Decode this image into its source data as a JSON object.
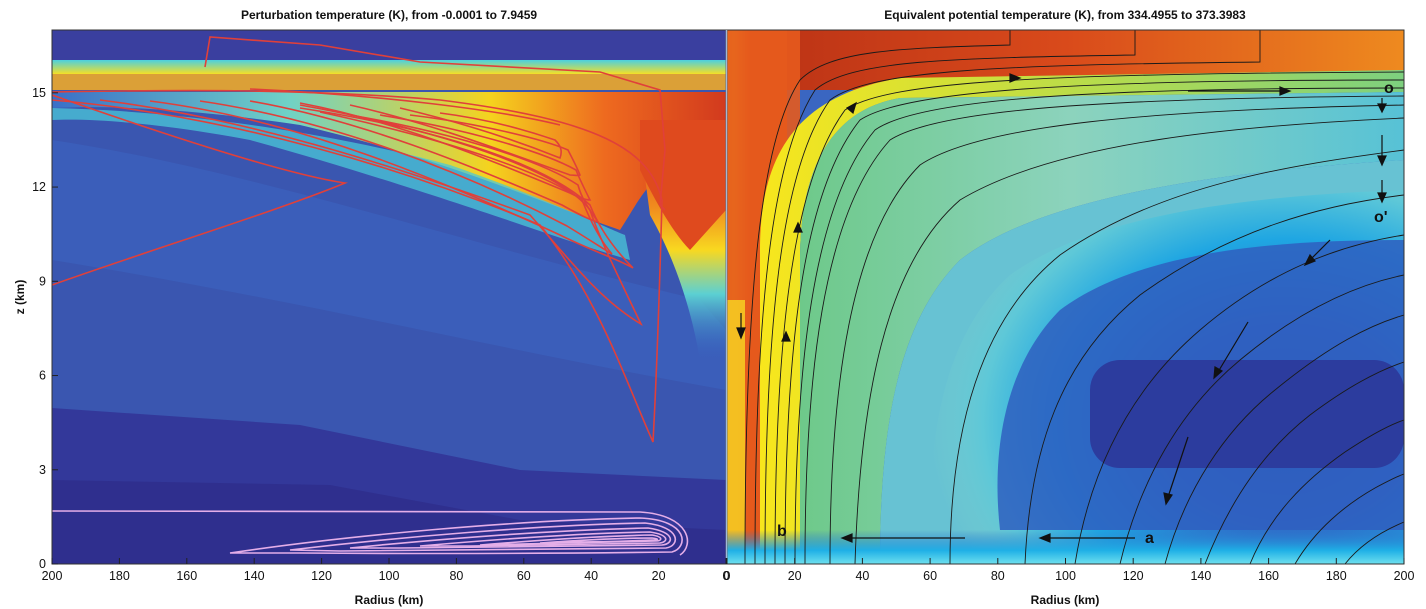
{
  "chart_data": [
    {
      "type": "heatmap",
      "title": "Perturbation temperature (K), from -0.0001 to 7.9459",
      "xlabel": "Radius (km)",
      "ylabel": "z (km)",
      "xlim": [
        200,
        0
      ],
      "ylim": [
        0,
        17
      ],
      "xticks": [
        "200",
        "180",
        "160",
        "140",
        "120",
        "100",
        "80",
        "60",
        "40",
        "20",
        "0"
      ],
      "yticks": [
        "0",
        "3",
        "6",
        "9",
        "12",
        "15"
      ],
      "value_range": [
        -0.0001,
        7.9459
      ],
      "colormap": "jet",
      "overlay": "contours (red upper, pink lower)",
      "colors": {
        "red_contour": "#e0403a",
        "pink_contour": "#e4aee8"
      }
    },
    {
      "type": "heatmap",
      "title": "Equivalent potential temperature (K), from 334.4955 to 373.3983",
      "xlabel": "Radius (km)",
      "ylabel": "",
      "xlim": [
        0,
        200
      ],
      "ylim": [
        0,
        17
      ],
      "xticks": [
        "0",
        "20",
        "40",
        "60",
        "80",
        "100",
        "120",
        "140",
        "160",
        "180",
        "200"
      ],
      "value_range": [
        334.4955,
        373.3983
      ],
      "colormap": "jet",
      "overlay": "streamlines with flow arrows",
      "annotations": [
        {
          "text": "a",
          "x": 125,
          "z": 0.75
        },
        {
          "text": "b",
          "x": 15,
          "z": 0.9
        },
        {
          "text": "o",
          "x": 195,
          "z": 15.6
        },
        {
          "text": "o'",
          "x": 194,
          "z": 10.5
        }
      ]
    }
  ]
}
